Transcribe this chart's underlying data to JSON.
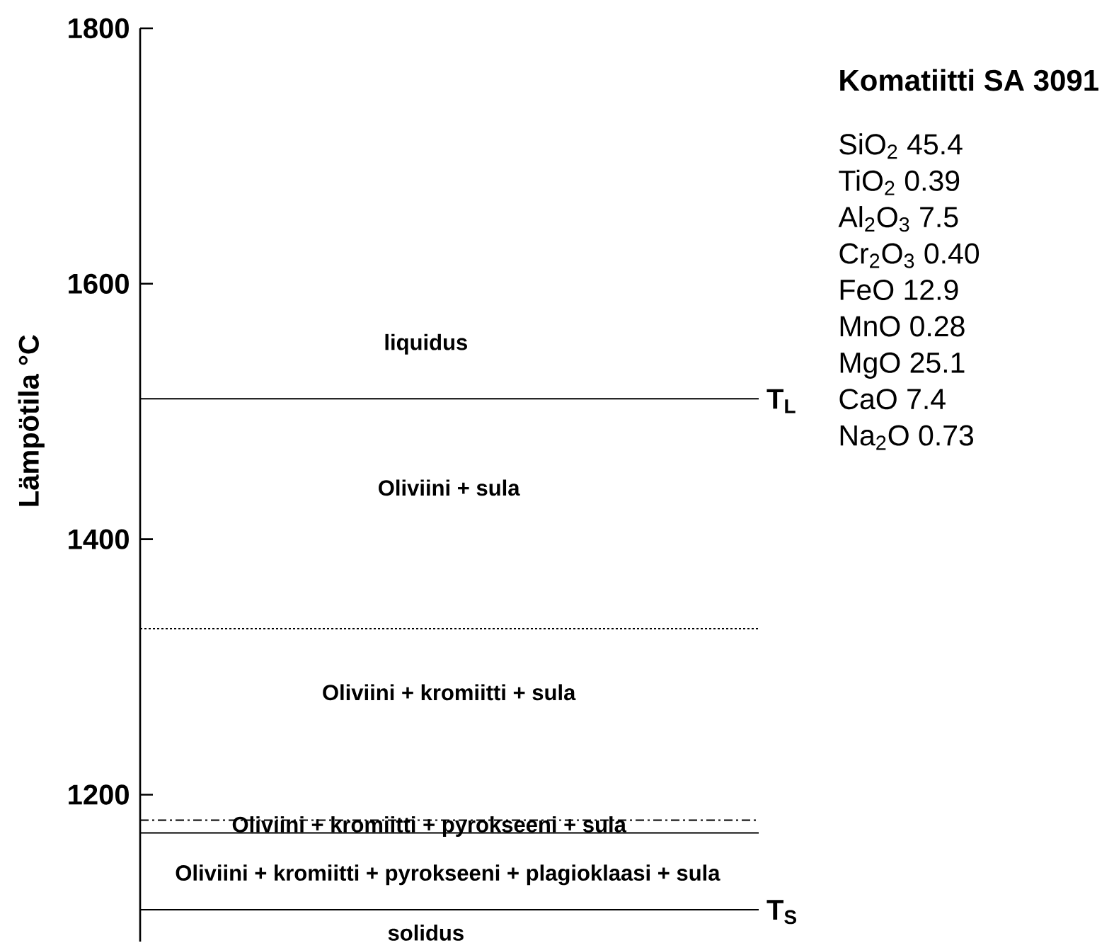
{
  "chart_data": {
    "type": "line",
    "title": "Komatiitti SA 3091",
    "ylabel": "Lämpötila °C",
    "ylim": [
      1085,
      1800
    ],
    "yticks": [
      1200,
      1400,
      1600,
      1800
    ],
    "categories": [
      null,
      null
    ],
    "ref_lines": [
      {
        "axis": "y",
        "value": 1510,
        "label": "T$_{L}$",
        "line_style": "solid"
      },
      {
        "axis": "y",
        "value": 1330,
        "line_style": "dotted"
      },
      {
        "axis": "y",
        "value": 1180,
        "line_style": "dashdot"
      },
      {
        "axis": "y",
        "value": 1170,
        "line_style": "solid"
      },
      {
        "axis": "y",
        "value": 1110,
        "label": "T$_{S}$",
        "line_style": "solid"
      }
    ],
    "annotations": [
      "liquidus",
      "Oliviini + sula",
      "Oliviini + kromiitti + sula",
      "Oliviini + kromiitti + pyrokseeni + sula",
      "Oliviini + kromiitti + pyrokseeni + plagioklaasi + sula",
      "solidus",
      "SiO$_{2}$ 45.4",
      "TiO$_{2}$ 0.39",
      "Al$_{2}$O$_{3}$ 7.5",
      "Cr$_{2}$O$_{3}$ 0.40",
      "FeO 12.9",
      "MnO 0.28",
      "MgO 25.1",
      "CaO 7.4",
      "Na$_{2}$O 0.73"
    ]
  }
}
